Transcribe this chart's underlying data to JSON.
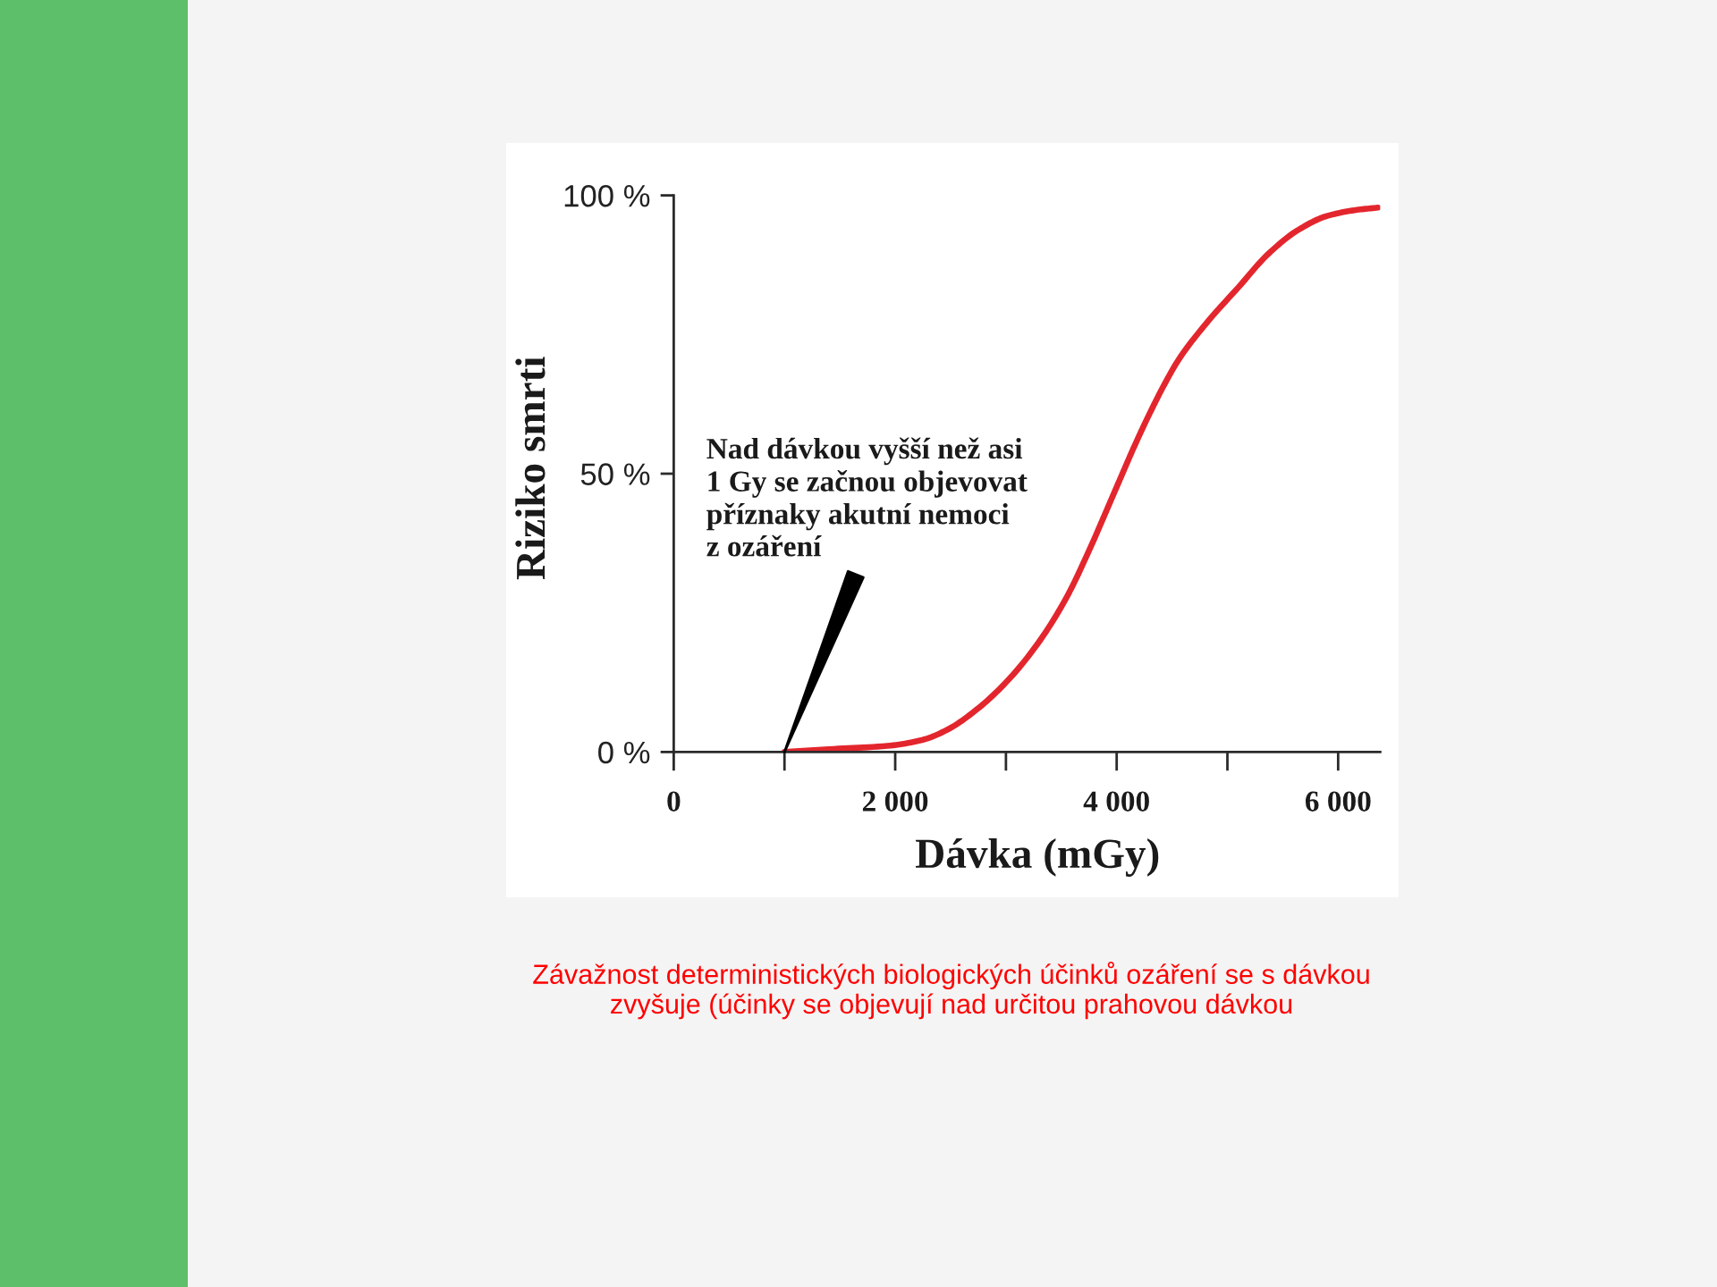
{
  "chart_data": {
    "type": "line",
    "xlabel": "Dávka (mGy)",
    "ylabel": "Riziko smrti",
    "xlim": [
      0,
      6380
    ],
    "ylim": [
      0,
      100
    ],
    "xticks": [
      0,
      {
        "value": 1000,
        "label": null
      },
      {
        "value": 2000,
        "label": "2 000"
      },
      {
        "value": 3000,
        "label": null
      },
      {
        "value": 4000,
        "label": "4 000"
      },
      {
        "value": 5000,
        "label": null
      },
      {
        "value": 6000,
        "label": "6 000"
      }
    ],
    "yticks": [
      {
        "value": 0,
        "label": "0 %"
      },
      {
        "value": 50,
        "label": "50 %"
      },
      {
        "value": 100,
        "label": "100 %"
      }
    ],
    "series": [
      {
        "color": "#e3262d",
        "x": [
          1000,
          1400,
          1930,
          2250,
          2470,
          2740,
          3000,
          3270,
          3540,
          3780,
          3900,
          4030,
          4150,
          4290,
          4430,
          4560,
          4830,
          5100,
          5370,
          5640,
          5900,
          6170,
          6360
        ],
        "values": [
          0,
          0.5,
          1.1,
          2.2,
          4,
          7.7,
          12.5,
          19,
          27.5,
          37.5,
          43,
          49,
          54.5,
          60.5,
          66,
          70.5,
          77.5,
          83.5,
          89.5,
          93.8,
          96.3,
          97.4,
          97.8
        ]
      }
    ],
    "annotations": [
      {
        "text": "Nad dávkou vyšší než asi\n1 Gy se začnou objevovat\npříznaky akutní nemoci\nz ozáření",
        "x": 1000,
        "y": 0
      },
      "Závažnost deterministických biologických účinků ozáření se s dávkou\nzvyšuje (účinky se objevují nad určitou prahovou dávkou"
    ]
  }
}
